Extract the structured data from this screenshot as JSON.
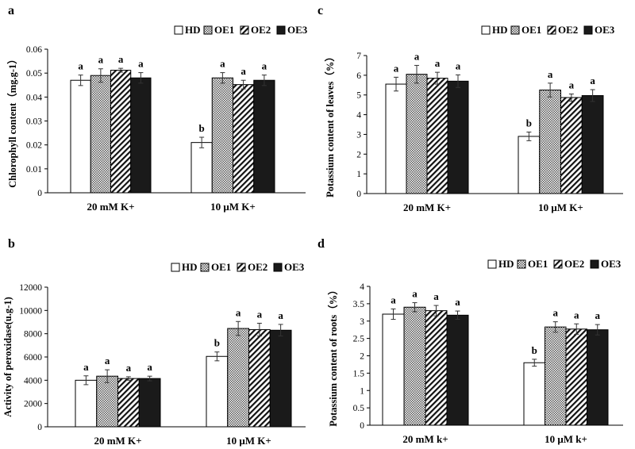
{
  "series_styles": [
    {
      "key": "HD",
      "fill": "#ffffff"
    },
    {
      "key": "OE1",
      "fill": "url(#dots)"
    },
    {
      "key": "OE2",
      "fill": "url(#diag)"
    },
    {
      "key": "OE3",
      "fill": "#1a1a1a"
    }
  ],
  "chart_data": [
    {
      "letter": "a",
      "type": "bar",
      "title": "",
      "ylabel": "Chlorophyll content（mg.g-1）",
      "ylim": [
        0,
        0.06
      ],
      "yticks": [
        "0",
        "0.01",
        "0.02",
        "0.03",
        "0.04",
        "0.05",
        "0.06"
      ],
      "categories": [
        "20 mM K+",
        "10 μM K+"
      ],
      "legend_position": "top",
      "series": [
        {
          "name": "HD",
          "values": [
            0.047,
            0.021
          ],
          "errors": [
            0.0022,
            0.0022
          ],
          "labels": [
            "a",
            "b"
          ]
        },
        {
          "name": "OE1",
          "values": [
            0.049,
            0.048
          ],
          "errors": [
            0.0028,
            0.0022
          ],
          "labels": [
            "a",
            "a"
          ]
        },
        {
          "name": "OE2",
          "values": [
            0.0512,
            0.0452
          ],
          "errors": [
            0.0008,
            0.0018
          ],
          "labels": [
            "a",
            "a"
          ]
        },
        {
          "name": "OE3",
          "values": [
            0.048,
            0.047
          ],
          "errors": [
            0.0022,
            0.0022
          ],
          "labels": [
            "a",
            "a"
          ]
        }
      ]
    },
    {
      "letter": "c",
      "type": "bar",
      "title": "",
      "ylabel": "Potassium content of leaves（%）",
      "ylim": [
        0,
        7
      ],
      "yticks": [
        "0",
        "1",
        "2",
        "3",
        "4",
        "5",
        "6",
        "7"
      ],
      "categories": [
        "20 mM K+",
        "10 μM K+"
      ],
      "legend_position": "top",
      "series": [
        {
          "name": "HD",
          "values": [
            5.55,
            2.9
          ],
          "errors": [
            0.35,
            0.22
          ],
          "labels": [
            "a",
            "b"
          ]
        },
        {
          "name": "OE1",
          "values": [
            6.05,
            5.25
          ],
          "errors": [
            0.45,
            0.35
          ],
          "labels": [
            "a",
            "a"
          ]
        },
        {
          "name": "OE2",
          "values": [
            5.85,
            4.87
          ],
          "errors": [
            0.3,
            0.18
          ],
          "labels": [
            "a",
            "a"
          ]
        },
        {
          "name": "OE3",
          "values": [
            5.7,
            4.97
          ],
          "errors": [
            0.32,
            0.3
          ],
          "labels": [
            "a",
            "a"
          ]
        }
      ]
    },
    {
      "letter": "b",
      "type": "bar",
      "title": "",
      "ylabel": "Activity of peroxidase(u.g-1)",
      "ylim": [
        0,
        12000
      ],
      "yticks": [
        "0",
        "2000",
        "4000",
        "6000",
        "8000",
        "10000",
        "12000"
      ],
      "categories": [
        "20 mM K+",
        "10 μM K+"
      ],
      "legend_position": "top",
      "series": [
        {
          "name": "HD",
          "values": [
            4000,
            6050
          ],
          "errors": [
            380,
            380
          ],
          "labels": [
            "a",
            "b"
          ]
        },
        {
          "name": "OE1",
          "values": [
            4350,
            8450
          ],
          "errors": [
            550,
            600
          ],
          "labels": [
            "a",
            "a"
          ]
        },
        {
          "name": "OE2",
          "values": [
            4150,
            8350
          ],
          "errors": [
            150,
            550
          ],
          "labels": [
            "a",
            "a"
          ]
        },
        {
          "name": "OE3",
          "values": [
            4150,
            8300
          ],
          "errors": [
            200,
            500
          ],
          "labels": [
            "a",
            "a"
          ]
        }
      ]
    },
    {
      "letter": "d",
      "type": "bar",
      "title": "",
      "ylabel": "Potassium content of roots（%）",
      "ylim": [
        0,
        4
      ],
      "yticks": [
        "0",
        "0.5",
        "1",
        "1.5",
        "2",
        "2.5",
        "3",
        "3.5",
        "4"
      ],
      "categories": [
        "20 mM k+",
        "10 μM k+"
      ],
      "legend_position": "top",
      "series": [
        {
          "name": "HD",
          "values": [
            3.2,
            1.8
          ],
          "errors": [
            0.15,
            0.1
          ],
          "labels": [
            "a",
            "b"
          ]
        },
        {
          "name": "OE1",
          "values": [
            3.4,
            2.83
          ],
          "errors": [
            0.13,
            0.15
          ],
          "labels": [
            "a",
            "a"
          ]
        },
        {
          "name": "OE2",
          "values": [
            3.3,
            2.77
          ],
          "errors": [
            0.15,
            0.15
          ],
          "labels": [
            "a",
            "a"
          ]
        },
        {
          "name": "OE3",
          "values": [
            3.17,
            2.75
          ],
          "errors": [
            0.12,
            0.15
          ],
          "labels": [
            "a",
            "a"
          ]
        }
      ]
    }
  ]
}
